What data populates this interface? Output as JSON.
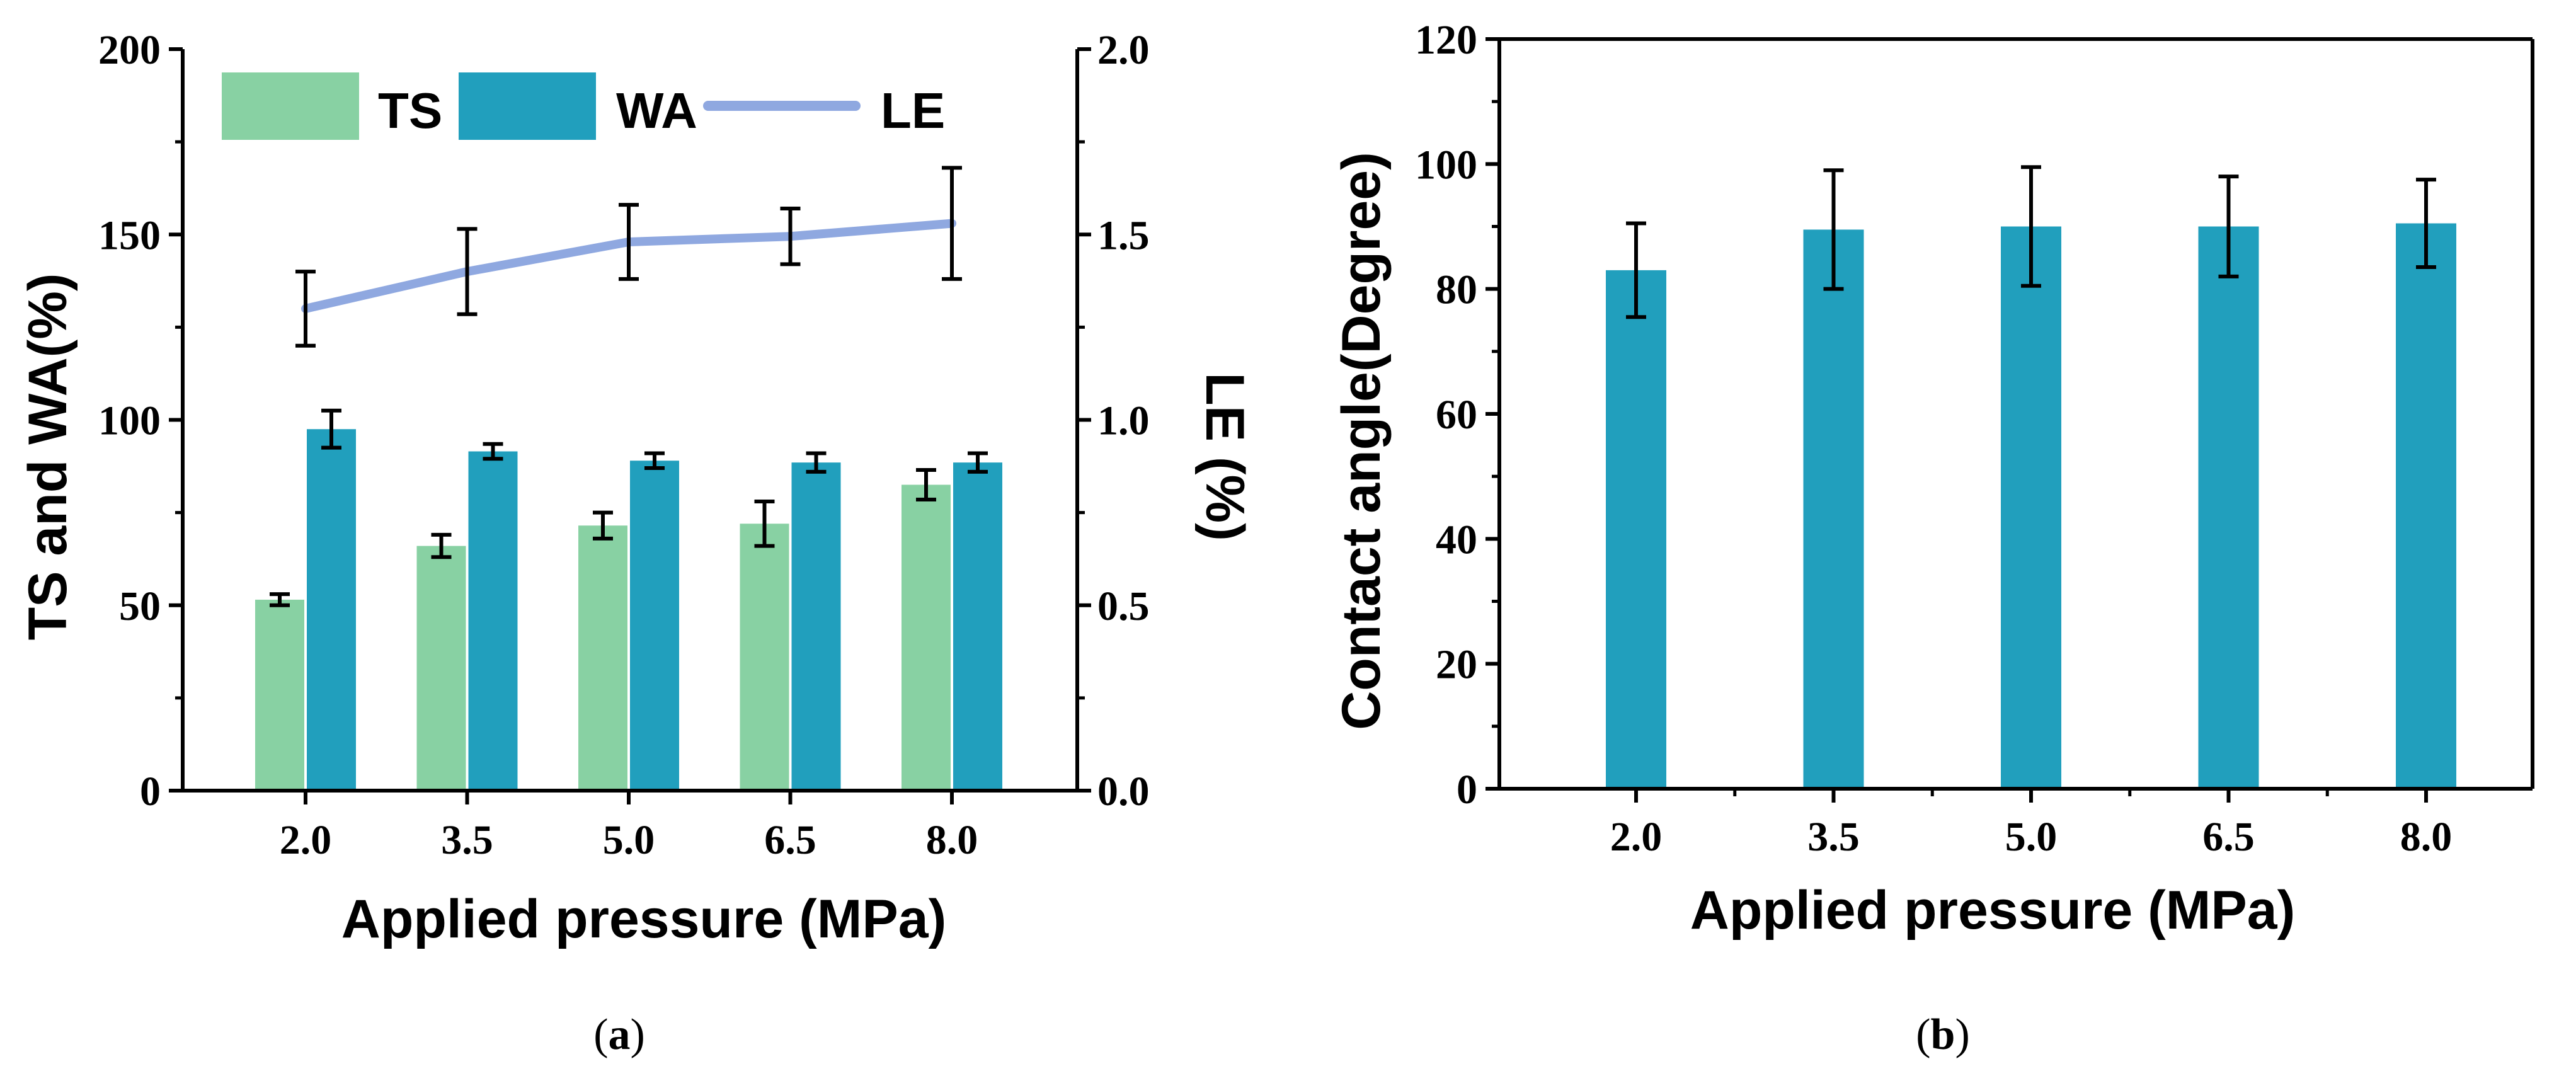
{
  "panels": {
    "a": {
      "caption_open": "(",
      "caption_letter": "a",
      "caption_close": ")"
    },
    "b": {
      "caption_open": "(",
      "caption_letter": "b",
      "caption_close": ")"
    }
  },
  "chart_data": [
    {
      "type": "bar",
      "panel": "a",
      "categories": [
        "2.0",
        "3.5",
        "5.0",
        "6.5",
        "8.0"
      ],
      "xlabel": "Applied pressure (MPa)",
      "ylabel": "TS and WA(%)",
      "ylim": [
        0,
        200
      ],
      "yticks": [
        "0",
        "50",
        "100",
        "150",
        "200"
      ],
      "y2label": "LE (%)",
      "y2lim": [
        0,
        2.0
      ],
      "y2ticks": [
        "0.0",
        "0.5",
        "1.0",
        "1.5",
        "2.0"
      ],
      "legend_position": "top",
      "series": [
        {
          "name": "TS",
          "kind": "bar",
          "axis": "left",
          "color": "#88d1a3",
          "values": [
            51.5,
            66,
            71.5,
            72,
            82.5
          ],
          "errors": [
            1.5,
            3,
            3.5,
            6,
            4
          ]
        },
        {
          "name": "WA",
          "kind": "bar",
          "axis": "left",
          "color": "#219fbd",
          "values": [
            97.5,
            91.5,
            89,
            88.5,
            88.5
          ],
          "errors": [
            5,
            2,
            2,
            2.5,
            2.5
          ]
        },
        {
          "name": "LE",
          "kind": "line",
          "axis": "right",
          "color": "#8fa8e0",
          "values": [
            1.3,
            1.4,
            1.48,
            1.495,
            1.53
          ],
          "errors": [
            0.1,
            0.115,
            0.1,
            0.075,
            0.15
          ]
        }
      ]
    },
    {
      "type": "bar",
      "panel": "b",
      "categories": [
        "2.0",
        "3.5",
        "5.0",
        "6.5",
        "8.0"
      ],
      "xlabel": "Applied pressure (MPa)",
      "ylabel": "Contact angle(Degree)",
      "ylim": [
        0,
        120
      ],
      "yticks": [
        "0",
        "20",
        "40",
        "60",
        "80",
        "100",
        "120"
      ],
      "series": [
        {
          "name": "",
          "kind": "bar",
          "color": "#219fbd",
          "values": [
            83,
            89.5,
            90,
            90,
            90.5
          ],
          "errors": [
            7.5,
            9.5,
            9.5,
            8,
            7
          ]
        }
      ]
    }
  ]
}
